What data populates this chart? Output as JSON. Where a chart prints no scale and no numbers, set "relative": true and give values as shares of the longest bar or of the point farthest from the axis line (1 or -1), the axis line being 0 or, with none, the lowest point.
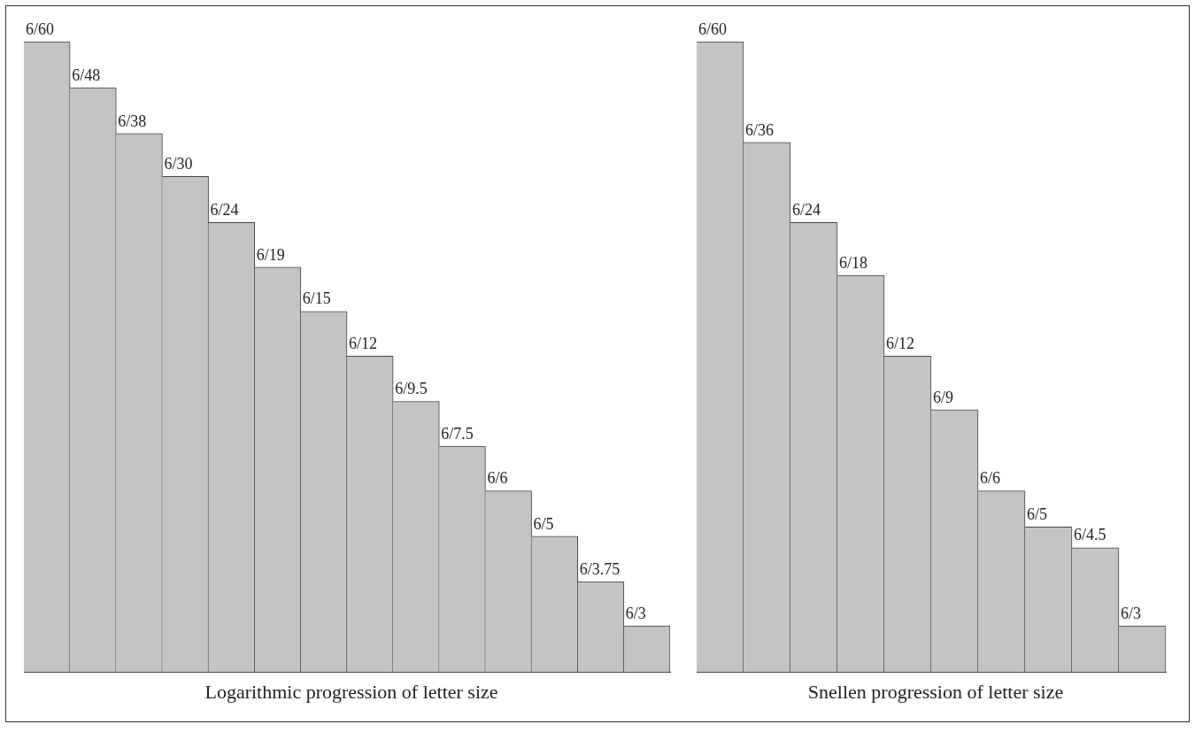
{
  "chart_data": [
    {
      "type": "bar",
      "relative": true,
      "xlabel": "Logarithmic progression of letter size",
      "categories": [
        "6/60",
        "6/48",
        "6/38",
        "6/30",
        "6/24",
        "6/19",
        "6/15",
        "6/12",
        "6/9.5",
        "6/7.5",
        "6/6",
        "6/5",
        "6/3.75",
        "6/3"
      ],
      "values": [
        1,
        0.927,
        0.854,
        0.786,
        0.713,
        0.642,
        0.572,
        0.501,
        0.429,
        0.358,
        0.287,
        0.215,
        0.143,
        0.073
      ],
      "color": "#c4c4c4"
    },
    {
      "type": "bar",
      "relative": true,
      "xlabel": "Snellen progression of letter size",
      "categories": [
        "6/60",
        "6/36",
        "6/24",
        "6/18",
        "6/12",
        "6/9",
        "6/6",
        "6/5",
        "6/4.5",
        "6/3"
      ],
      "values": [
        1,
        0.84,
        0.713,
        0.629,
        0.501,
        0.416,
        0.287,
        0.23,
        0.197,
        0.073
      ],
      "color": "#c4c4c4"
    }
  ]
}
